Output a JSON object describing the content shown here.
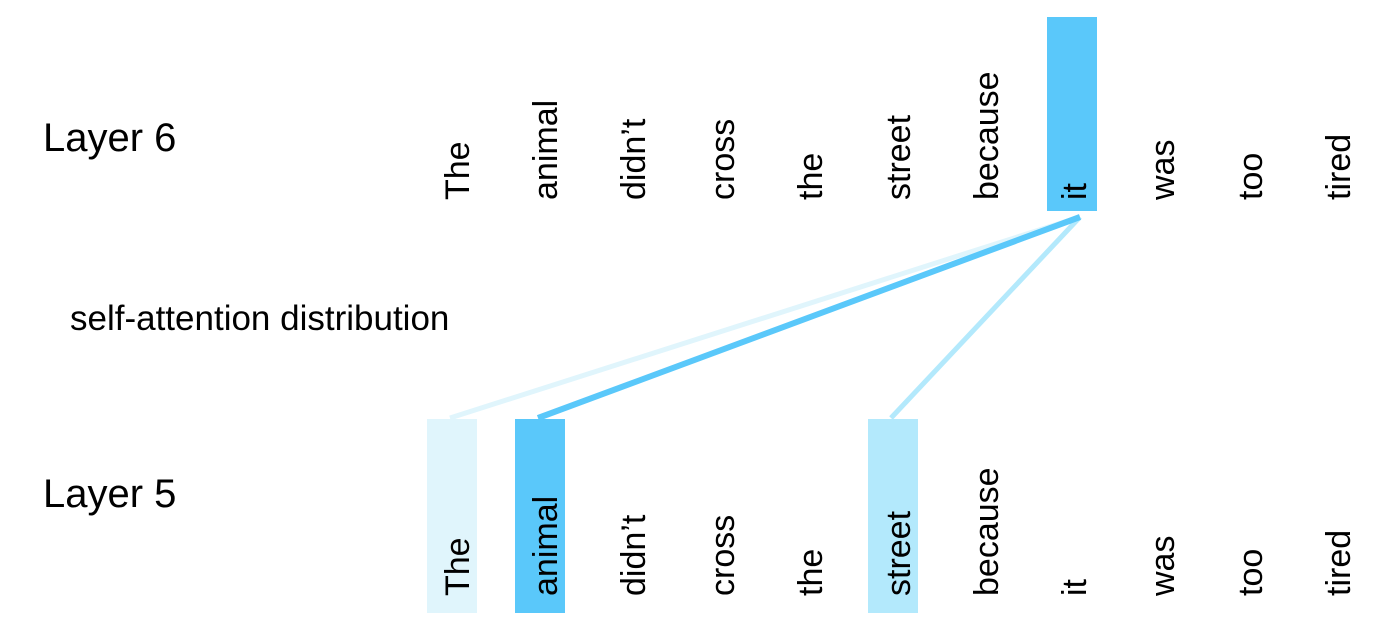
{
  "layers": {
    "top": {
      "label": "Layer 6",
      "tokens": [
        "The",
        "animal",
        "didn’t",
        "cross",
        "the",
        "street",
        "because",
        "it",
        "was",
        "too",
        "tired"
      ],
      "highlight_index": 7
    },
    "bottom": {
      "label": "Layer 5",
      "tokens": [
        "The",
        "animal",
        "didn’t",
        "cross",
        "the",
        "street",
        "because",
        "it",
        "was",
        "too",
        "tired"
      ],
      "highlighted": [
        {
          "index": 0,
          "weight": "low"
        },
        {
          "index": 1,
          "weight": "high"
        },
        {
          "index": 5,
          "weight": "medium"
        }
      ]
    }
  },
  "caption": "self-attention distribution",
  "attention_links": [
    {
      "from_top_index": 7,
      "to_bottom_index": 0,
      "weight": "low"
    },
    {
      "from_top_index": 7,
      "to_bottom_index": 1,
      "weight": "high"
    },
    {
      "from_top_index": 7,
      "to_bottom_index": 5,
      "weight": "medium"
    }
  ],
  "colors": {
    "high": "#5ac8fa",
    "medium": "#b3e9fc",
    "low": "#e0f5fc",
    "text": "#000000"
  }
}
